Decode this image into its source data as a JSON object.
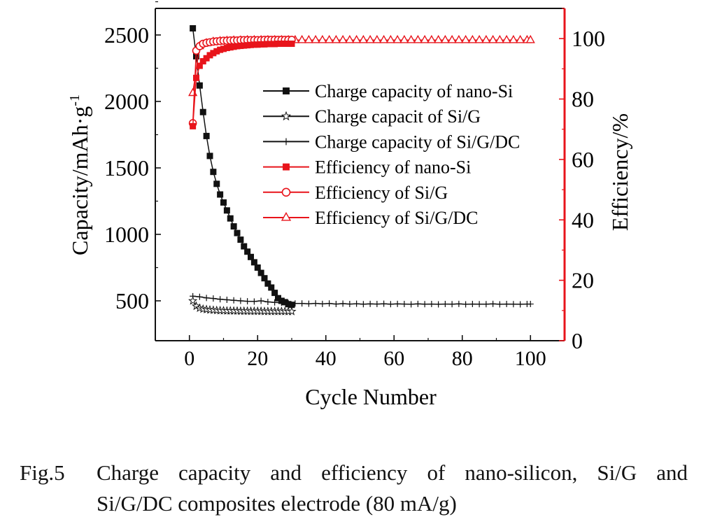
{
  "chart_data": {
    "type": "line",
    "xlabel": "Cycle Number",
    "ylabel": "Capacity/mAh·g-1",
    "ylabel_main": "Capacity/mAh·g",
    "ylabel_sup": "-1",
    "y2label": "Efficiency/%",
    "xlim": [
      -10,
      110
    ],
    "ylim": [
      200,
      2700
    ],
    "y2lim": [
      0,
      110
    ],
    "x_ticks": [
      "0",
      "20",
      "40",
      "60",
      "80",
      "100"
    ],
    "y_ticks": [
      "500",
      "1000",
      "1500",
      "2000",
      "2500"
    ],
    "y2_ticks": [
      "0",
      "20",
      "40",
      "60",
      "80",
      "100"
    ],
    "grid": false,
    "legend_position": "upper-middle",
    "colors": {
      "capacity": "#111111",
      "efficiency": "#e8141b"
    },
    "series": [
      {
        "name": "Charge capacity of nano-Si",
        "axis": "left",
        "marker": "filled-square",
        "color": "#111111",
        "x": [
          1,
          2,
          3,
          4,
          5,
          6,
          7,
          8,
          9,
          10,
          11,
          12,
          13,
          14,
          15,
          16,
          17,
          18,
          19,
          20,
          21,
          22,
          23,
          24,
          25,
          26,
          27,
          28,
          29,
          30
        ],
        "y": [
          2550,
          2340,
          2120,
          1920,
          1740,
          1590,
          1470,
          1380,
          1300,
          1240,
          1180,
          1120,
          1060,
          1010,
          960,
          910,
          870,
          830,
          790,
          750,
          710,
          670,
          630,
          600,
          560,
          520,
          500,
          490,
          475,
          470
        ]
      },
      {
        "name": "Charge capacit of Si/G",
        "axis": "left",
        "marker": "star",
        "color": "#111111",
        "x": [
          1,
          2,
          3,
          4,
          5,
          6,
          7,
          8,
          9,
          10,
          11,
          12,
          13,
          14,
          15,
          16,
          17,
          18,
          19,
          20,
          21,
          22,
          23,
          24,
          25,
          26,
          27,
          28,
          29,
          30
        ],
        "y": [
          500,
          460,
          445,
          438,
          435,
          432,
          430,
          428,
          427,
          426,
          425,
          425,
          424,
          424,
          423,
          423,
          423,
          422,
          422,
          422,
          422,
          421,
          421,
          421,
          421,
          421,
          421,
          421,
          420,
          420
        ]
      },
      {
        "name": "Charge capacity of Si/G/DC",
        "axis": "left",
        "marker": "plus",
        "color": "#111111",
        "x": [
          1,
          3,
          5,
          7,
          9,
          11,
          13,
          15,
          17,
          19,
          21,
          23,
          25,
          27,
          29,
          31,
          33,
          35,
          37,
          39,
          41,
          43,
          45,
          47,
          49,
          51,
          53,
          55,
          57,
          59,
          61,
          63,
          65,
          67,
          69,
          71,
          73,
          75,
          77,
          79,
          81,
          83,
          85,
          87,
          89,
          91,
          93,
          95,
          97,
          99,
          100
        ],
        "y": [
          535,
          530,
          522,
          518,
          512,
          508,
          504,
          500,
          497,
          495,
          500,
          492,
          488,
          486,
          483,
          480,
          480,
          478,
          481,
          477,
          480,
          476,
          479,
          476,
          478,
          475,
          477,
          476,
          478,
          475,
          477,
          476,
          474,
          477,
          475,
          476,
          474,
          476,
          475,
          477,
          474,
          476,
          475,
          475,
          477,
          474,
          476,
          475,
          474,
          476,
          476
        ]
      },
      {
        "name": "Efficiency of nano-Si",
        "axis": "right",
        "marker": "filled-square",
        "color": "#e8141b",
        "x": [
          1,
          2,
          3,
          4,
          5,
          6,
          7,
          8,
          9,
          10,
          11,
          12,
          13,
          14,
          15,
          16,
          17,
          18,
          19,
          20,
          21,
          22,
          23,
          24,
          25,
          26,
          27,
          28,
          29,
          30
        ],
        "y": [
          71,
          87,
          91,
          92.5,
          93.5,
          94.5,
          95.2,
          95.8,
          96.3,
          96.6,
          96.9,
          97.1,
          97.3,
          97.5,
          97.6,
          97.7,
          97.8,
          97.9,
          98,
          98,
          98.1,
          98.1,
          98.2,
          98.2,
          98.2,
          98.3,
          98.3,
          98.3,
          98.3,
          98.3
        ]
      },
      {
        "name": "Efficiency of Si/G",
        "axis": "right",
        "marker": "open-circle",
        "color": "#e8141b",
        "x": [
          1,
          2,
          3,
          4,
          5,
          6,
          7,
          8,
          9,
          10,
          11,
          12,
          13,
          14,
          15,
          16,
          17,
          18,
          19,
          20,
          21,
          22,
          23,
          24,
          25,
          26,
          27,
          28,
          29,
          30
        ],
        "y": [
          72,
          96,
          97.5,
          98.3,
          98.6,
          98.8,
          99,
          99.1,
          99.2,
          99.3,
          99.3,
          99.4,
          99.4,
          99.4,
          99.5,
          99.5,
          99.5,
          99.5,
          99.5,
          99.5,
          99.5,
          99.6,
          99.6,
          99.6,
          99.6,
          99.6,
          99.6,
          99.6,
          99.6,
          99.6
        ]
      },
      {
        "name": "Efficiency of Si/G/DC",
        "axis": "right",
        "marker": "open-triangle",
        "color": "#e8141b",
        "x": [
          1,
          3,
          5,
          7,
          9,
          11,
          13,
          15,
          17,
          19,
          21,
          23,
          25,
          27,
          29,
          31,
          33,
          35,
          37,
          39,
          41,
          43,
          45,
          47,
          49,
          51,
          53,
          55,
          57,
          59,
          61,
          63,
          65,
          67,
          69,
          71,
          73,
          75,
          77,
          79,
          81,
          83,
          85,
          87,
          89,
          91,
          93,
          95,
          97,
          99,
          100
        ],
        "y": [
          82,
          97.5,
          98.5,
          99,
          99.2,
          99.3,
          99.4,
          99.4,
          99.5,
          99.5,
          99.5,
          99.5,
          99.5,
          99.5,
          99.5,
          99.5,
          99.5,
          99.5,
          99.5,
          99.5,
          99.5,
          99.5,
          99.5,
          99.5,
          99.5,
          99.5,
          99.5,
          99.5,
          99.5,
          99.5,
          99.5,
          99.5,
          99.5,
          99.5,
          99.5,
          99.5,
          99.5,
          99.5,
          99.5,
          99.5,
          99.5,
          99.5,
          99.5,
          99.5,
          99.5,
          99.5,
          99.5,
          99.5,
          99.5,
          99.5,
          99.5
        ]
      }
    ]
  },
  "caption": {
    "label": "Fig.5",
    "line1": "Charge capacity and efficiency of nano-silicon, Si/G and",
    "line2": "Si/G/DC composites electrode (80 mA/g)"
  }
}
